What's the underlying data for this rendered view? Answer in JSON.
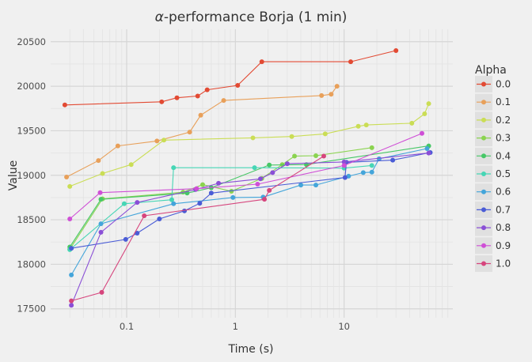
{
  "chart_data": {
    "type": "line",
    "title_symbol": "α",
    "title_rest": "-performance Borja (1 min)",
    "xlabel": "Time (s)",
    "ylabel": "Value",
    "xscale": "log",
    "xlim": [
      0.02,
      100
    ],
    "ylim": [
      17400,
      20640
    ],
    "x_ticks": [
      0.1,
      1,
      10
    ],
    "x_tick_labels": [
      "0.1",
      "1",
      "10"
    ],
    "y_ticks": [
      17500,
      18000,
      18500,
      19000,
      19500,
      20000,
      20500
    ],
    "y_tick_labels": [
      "17500",
      "18000",
      "18500",
      "19000",
      "19500",
      "20000",
      "20500"
    ],
    "grid": true,
    "legend_title": "Alpha",
    "legend_position": "right",
    "series": [
      {
        "name": "0.0",
        "color": "#e24a33",
        "points": [
          [
            0.027,
            19790
          ],
          [
            0.21,
            19825
          ],
          [
            0.29,
            19870
          ],
          [
            0.45,
            19890
          ],
          [
            0.55,
            19960
          ],
          [
            1.05,
            20010
          ],
          [
            1.75,
            20275
          ],
          [
            11.5,
            20275
          ],
          [
            30,
            20400
          ]
        ]
      },
      {
        "name": "0.1",
        "color": "#e8a05a",
        "points": [
          [
            0.028,
            18980
          ],
          [
            0.055,
            19165
          ],
          [
            0.083,
            19330
          ],
          [
            0.19,
            19385
          ],
          [
            0.38,
            19485
          ],
          [
            0.48,
            19675
          ],
          [
            0.78,
            19840
          ],
          [
            6.2,
            19895
          ],
          [
            7.6,
            19910
          ],
          [
            8.6,
            20000
          ]
        ]
      },
      {
        "name": "0.2",
        "color": "#cadd55",
        "points": [
          [
            0.03,
            18875
          ],
          [
            0.06,
            19020
          ],
          [
            0.11,
            19120
          ],
          [
            0.22,
            19395
          ],
          [
            1.45,
            19420
          ],
          [
            3.3,
            19435
          ],
          [
            6.7,
            19465
          ],
          [
            13.5,
            19550
          ],
          [
            16,
            19565
          ],
          [
            42,
            19585
          ],
          [
            55,
            19690
          ],
          [
            60,
            19805
          ]
        ]
      },
      {
        "name": "0.3",
        "color": "#8ad34f",
        "points": [
          [
            0.03,
            18170
          ],
          [
            0.06,
            18735
          ],
          [
            0.33,
            18810
          ],
          [
            0.5,
            18895
          ],
          [
            0.92,
            18820
          ],
          [
            1.75,
            18965
          ],
          [
            2.7,
            19120
          ],
          [
            3.5,
            19215
          ],
          [
            5.5,
            19220
          ],
          [
            18,
            19310
          ]
        ]
      },
      {
        "name": "0.4",
        "color": "#46c766",
        "points": [
          [
            0.03,
            18195
          ],
          [
            0.058,
            18730
          ],
          [
            0.36,
            18800
          ],
          [
            0.6,
            18860
          ],
          [
            2.05,
            19115
          ],
          [
            4.5,
            19120
          ],
          [
            60,
            19330
          ]
        ]
      },
      {
        "name": "0.5",
        "color": "#46d6b5",
        "points": [
          [
            0.03,
            18165
          ],
          [
            0.095,
            18680
          ],
          [
            0.26,
            18725
          ],
          [
            0.27,
            19085
          ],
          [
            1.5,
            19085
          ],
          [
            10,
            19080
          ],
          [
            18,
            19110
          ]
        ]
      },
      {
        "name": "0.6",
        "color": "#44a5da",
        "points": [
          [
            0.031,
            17880
          ],
          [
            0.058,
            18455
          ],
          [
            0.27,
            18680
          ],
          [
            0.95,
            18750
          ],
          [
            1.8,
            18755
          ],
          [
            4,
            18890
          ],
          [
            5.5,
            18890
          ],
          [
            11,
            18990
          ],
          [
            15,
            19030
          ],
          [
            18,
            19035
          ],
          [
            21,
            19185
          ],
          [
            58,
            19300
          ]
        ]
      },
      {
        "name": "0.7",
        "color": "#4a5cd6",
        "points": [
          [
            0.031,
            18180
          ],
          [
            0.098,
            18280
          ],
          [
            0.125,
            18350
          ],
          [
            0.2,
            18510
          ],
          [
            0.34,
            18600
          ],
          [
            0.47,
            18685
          ],
          [
            0.6,
            18800
          ],
          [
            10.2,
            18975
          ],
          [
            10.5,
            19145
          ],
          [
            28,
            19170
          ],
          [
            62,
            19255
          ]
        ]
      },
      {
        "name": "0.8",
        "color": "#8a4fd6",
        "points": [
          [
            0.031,
            17540
          ],
          [
            0.058,
            18360
          ],
          [
            0.125,
            18695
          ],
          [
            0.43,
            18840
          ],
          [
            0.7,
            18910
          ],
          [
            1.7,
            18960
          ],
          [
            2.2,
            19030
          ],
          [
            3,
            19130
          ],
          [
            10,
            19150
          ],
          [
            60,
            19250
          ]
        ]
      },
      {
        "name": "0.9",
        "color": "#cf4fd6",
        "points": [
          [
            0.03,
            18510
          ],
          [
            0.057,
            18805
          ],
          [
            0.44,
            18850
          ],
          [
            1.6,
            18900
          ],
          [
            10,
            19110
          ],
          [
            52,
            19470
          ]
        ]
      },
      {
        "name": "1.0",
        "color": "#d6457d",
        "points": [
          [
            0.031,
            17590
          ],
          [
            0.059,
            17685
          ],
          [
            0.145,
            18545
          ],
          [
            1.85,
            18730
          ],
          [
            2.05,
            18830
          ],
          [
            6.5,
            19215
          ]
        ]
      }
    ]
  }
}
